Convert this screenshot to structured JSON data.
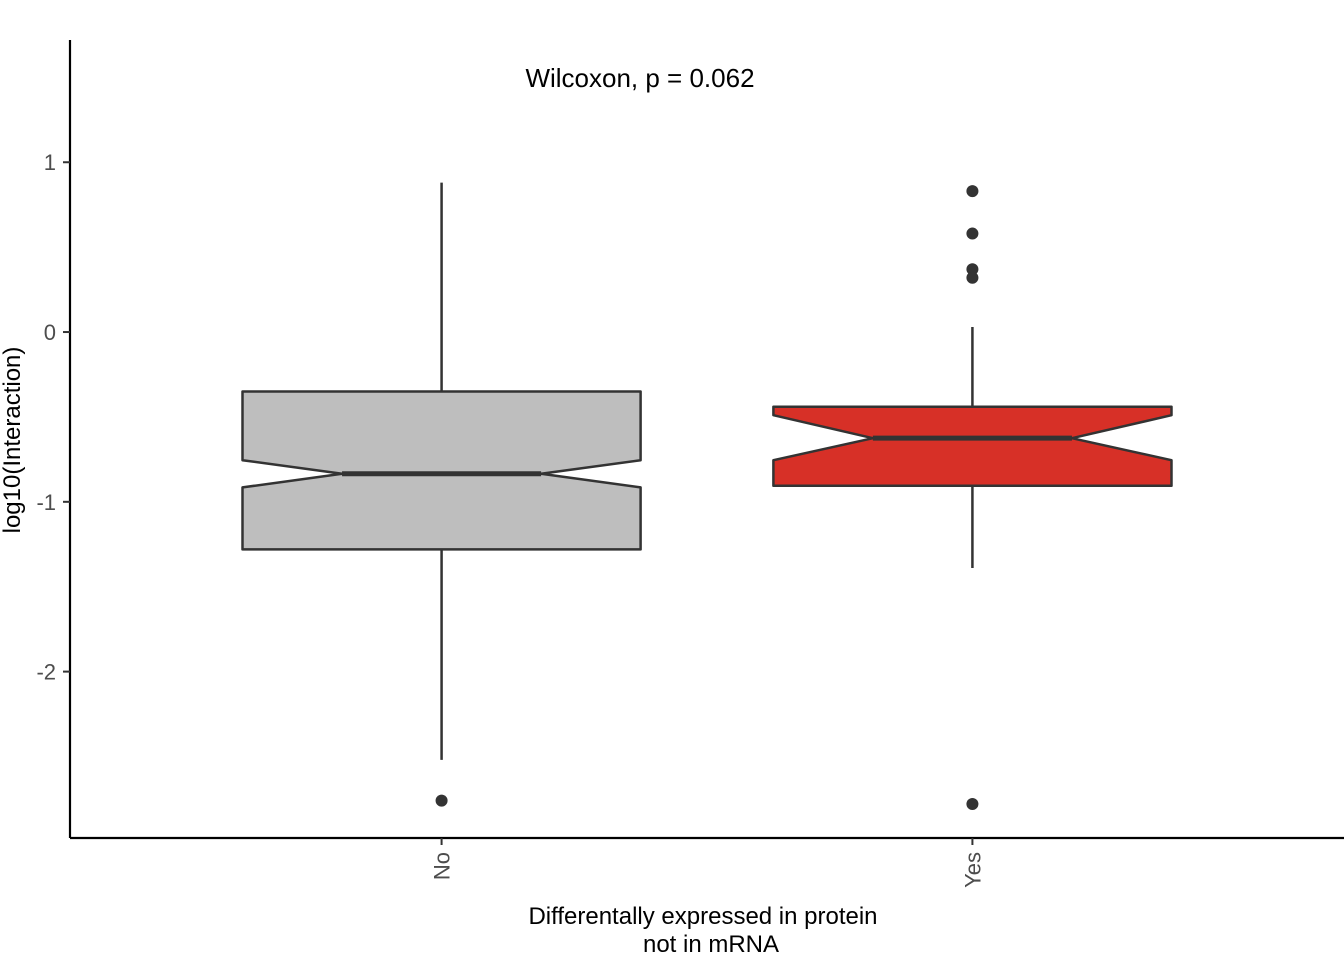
{
  "chart_data": {
    "type": "boxplot",
    "notched": true,
    "title": "",
    "annotation": "Wilcoxon, p = 0.062",
    "xlabel_lines": [
      "Differentally expressed in protein",
      "not in mRNA"
    ],
    "ylabel": "log10(Interaction)",
    "ylim": [
      -2.98,
      1.72
    ],
    "y_ticks": [
      {
        "value": 1,
        "label": "1"
      },
      {
        "value": 0,
        "label": "0"
      },
      {
        "value": -1,
        "label": "-1"
      },
      {
        "value": -2,
        "label": "-2"
      }
    ],
    "categories": [
      "No",
      "Yes"
    ],
    "series": [
      {
        "category": "No",
        "color": "#bebebe",
        "q1": -1.28,
        "median": -0.835,
        "q3": -0.35,
        "notch_low": -0.915,
        "notch_high": -0.755,
        "whisker_low": -2.52,
        "whisker_high": 0.88,
        "outliers": [
          -2.76
        ]
      },
      {
        "category": "Yes",
        "color": "#d73027",
        "q1": -0.905,
        "median": -0.625,
        "q3": -0.44,
        "notch_low": -0.755,
        "notch_high": -0.49,
        "whisker_low": -1.39,
        "whisker_high": 0.03,
        "outliers": [
          0.83,
          0.58,
          0.37,
          0.32,
          -2.78
        ]
      }
    ]
  }
}
